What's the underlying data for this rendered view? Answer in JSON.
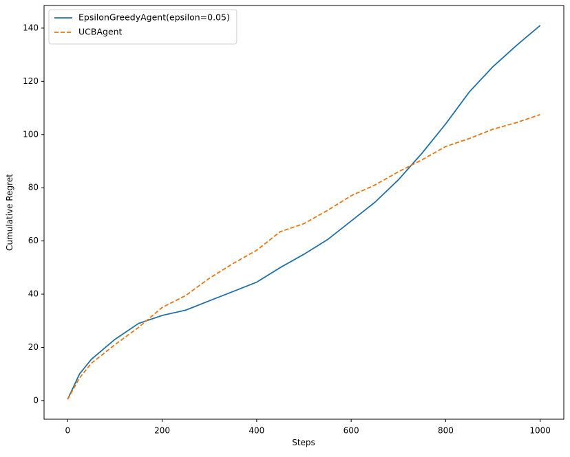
{
  "chart_data": {
    "type": "line",
    "x_label": "Steps",
    "y_label": "Cumulative Regret",
    "x": [
      0,
      25,
      50,
      100,
      150,
      200,
      250,
      300,
      350,
      400,
      450,
      500,
      550,
      600,
      650,
      700,
      750,
      800,
      850,
      900,
      950,
      1000
    ],
    "series": [
      {
        "name": "EpsilonGreedyAgent(epsilon=0.05)",
        "color": "#1f6fa8",
        "linestyle": "solid",
        "values": [
          0.5,
          10,
          15.5,
          23,
          29,
          32,
          34,
          37.5,
          41,
          44.5,
          50,
          55,
          60.5,
          67.5,
          74.5,
          83,
          93,
          104,
          116,
          125.5,
          133.5,
          141
        ]
      },
      {
        "name": "UCBAgent",
        "color": "#e8750f",
        "linestyle": "dashed",
        "values": [
          0.5,
          8.5,
          14,
          21,
          27.5,
          35,
          39.5,
          46,
          51.5,
          56.5,
          63.5,
          66.5,
          71.5,
          77,
          81,
          86,
          90.5,
          95.5,
          98.5,
          102,
          104.5,
          107.5
        ]
      }
    ],
    "xlim": [
      -50,
      1050
    ],
    "ylim": [
      -7,
      148.5
    ],
    "xticks": [
      0,
      200,
      400,
      600,
      800,
      1000
    ],
    "yticks": [
      0,
      20,
      40,
      60,
      80,
      100,
      120,
      140
    ],
    "grid": false,
    "legend": "upper-left"
  }
}
